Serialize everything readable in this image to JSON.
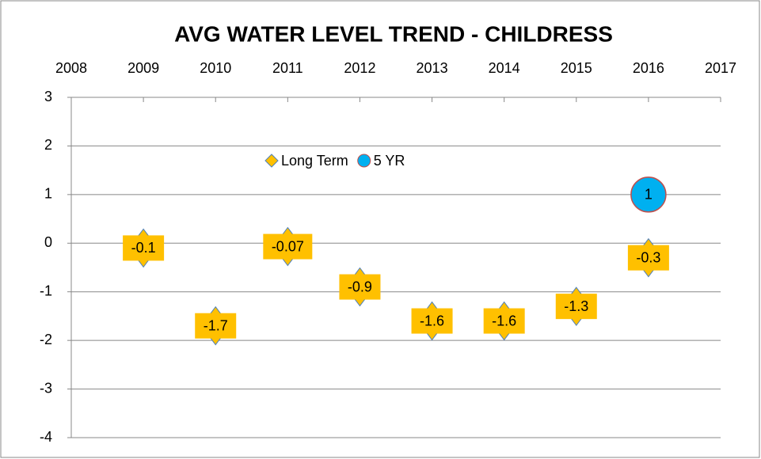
{
  "chart_data": {
    "type": "scatter",
    "title": "AVG WATER LEVEL TREND - CHILDRESS",
    "xlim": [
      2008,
      2017
    ],
    "xticks": [
      2008,
      2009,
      2010,
      2011,
      2012,
      2013,
      2014,
      2015,
      2016,
      2017
    ],
    "ylim": [
      -4,
      3
    ],
    "yticks": [
      -4,
      -3,
      -2,
      -1,
      0,
      1,
      2,
      3
    ],
    "grid": true,
    "legend": "top",
    "series": [
      {
        "name": "Long Term",
        "color": "#ffc000",
        "marker": "diamond",
        "x": [
          2009,
          2010,
          2011,
          2012,
          2013,
          2014,
          2015,
          2016
        ],
        "values": [
          -0.1,
          -1.7,
          -0.07,
          -0.9,
          -1.6,
          -1.6,
          -1.3,
          -0.3
        ]
      },
      {
        "name": "5 YR",
        "color": "#00b0f0",
        "marker": "circle",
        "x": [
          2016
        ],
        "values": [
          1
        ]
      }
    ]
  }
}
